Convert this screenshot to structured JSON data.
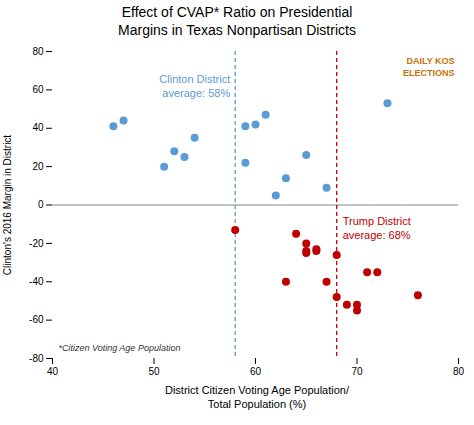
{
  "chart_data": {
    "type": "scatter",
    "title": "Effect of CVAP* Ratio on Presidential\nMargins in Texas Nonpartisan Districts",
    "xlabel": "District Citizen Voting Age Population/\nTotal Population (%)",
    "ylabel": "Clinton's 2016 Margin in District",
    "xlim": [
      40,
      80
    ],
    "ylim": [
      -80,
      80
    ],
    "xticks": [
      40,
      50,
      60,
      70,
      80
    ],
    "yticks": [
      -80,
      -60,
      -40,
      -20,
      0,
      20,
      40,
      60,
      80
    ],
    "grid": false,
    "series": [
      {
        "color": "#5B9BD5",
        "x": [
          46,
          47,
          51,
          52,
          53,
          54,
          59,
          59,
          60,
          61,
          62,
          63,
          65,
          67,
          73
        ],
        "values": [
          41,
          44,
          20,
          28,
          25,
          35,
          41,
          22,
          42,
          47,
          5,
          14,
          26,
          9,
          53
        ]
      },
      {
        "color": "#C00000",
        "x": [
          58,
          63,
          64,
          65,
          65,
          65,
          66,
          66,
          67,
          68,
          68,
          69,
          70,
          70,
          71,
          72,
          76
        ],
        "values": [
          -13,
          -40,
          -15,
          -20,
          -24,
          -25,
          -23,
          -24,
          -40,
          -26,
          -48,
          -52,
          -55,
          -52,
          -35,
          -35,
          -47
        ]
      }
    ],
    "reference_lines": [
      {
        "axis": "y",
        "value": 0,
        "color": "#888888"
      },
      {
        "axis": "x",
        "value": 58,
        "color": "#5B9BD5",
        "line_style": "dashed"
      },
      {
        "axis": "x",
        "value": 68,
        "color": "#C00000",
        "line_style": "dashed"
      }
    ],
    "annotations": [
      {
        "text": "Clinton District\naverage: 58%",
        "color": "#5B9BD5",
        "x": 58
      },
      {
        "text": "Trump District\naverage: 68%",
        "color": "#C00000",
        "x": 68
      }
    ],
    "footnote": {
      "text": "*Citizen Voting Age Population",
      "color": "#333333"
    },
    "logo": {
      "text": "DAILY KOS\nELECTIONS",
      "color": "#C8720A"
    }
  }
}
